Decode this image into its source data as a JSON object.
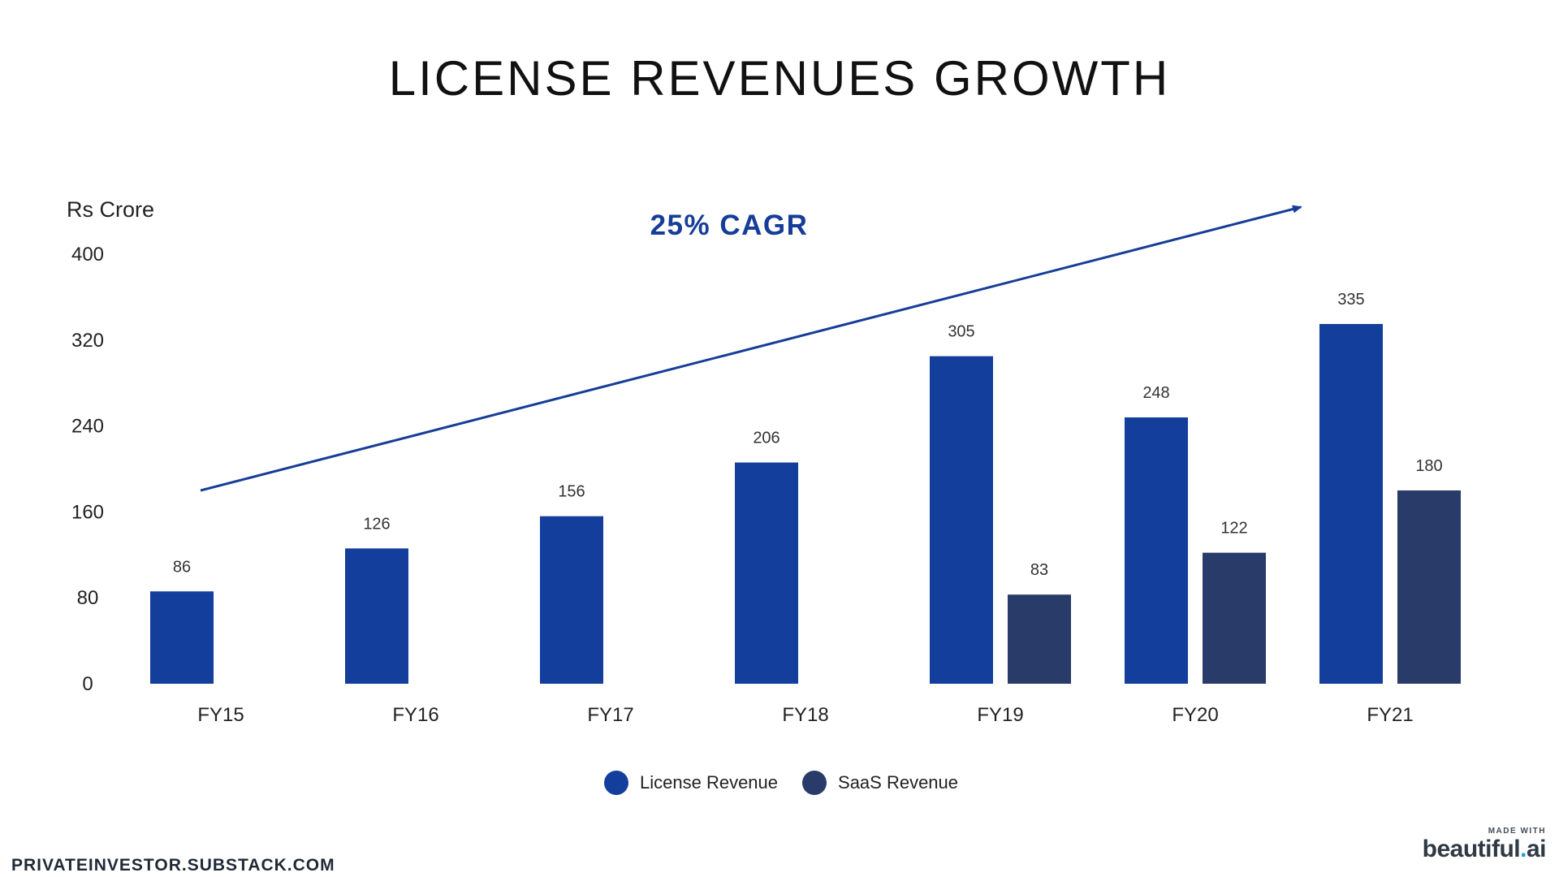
{
  "header": {
    "title": "LICENSE REVENUES GROWTH"
  },
  "chart_data": {
    "type": "bar",
    "ylabel": "Rs Crore",
    "ylim": [
      0,
      400
    ],
    "yticks": [
      0,
      80,
      160,
      240,
      320,
      400
    ],
    "categories": [
      "FY15",
      "FY16",
      "FY17",
      "FY18",
      "FY19",
      "FY20",
      "FY21"
    ],
    "series": [
      {
        "name": "License Revenue",
        "color": "#143e9c",
        "values": [
          86,
          126,
          156,
          206,
          305,
          248,
          335
        ]
      },
      {
        "name": "SaaS Revenue",
        "color": "#283b69",
        "values": [
          null,
          null,
          null,
          null,
          83,
          122,
          180
        ]
      }
    ],
    "grid": false,
    "legend": "bottom-center",
    "annotation": {
      "text": "25% CAGR",
      "color": "#163d97"
    }
  },
  "footer": {
    "source": "PRIVATEINVESTOR.SUBSTACK.COM",
    "brand_tagline": "MADE WITH",
    "brand_name": "beautiful",
    "brand_dot": ".",
    "brand_suffix": "ai"
  }
}
